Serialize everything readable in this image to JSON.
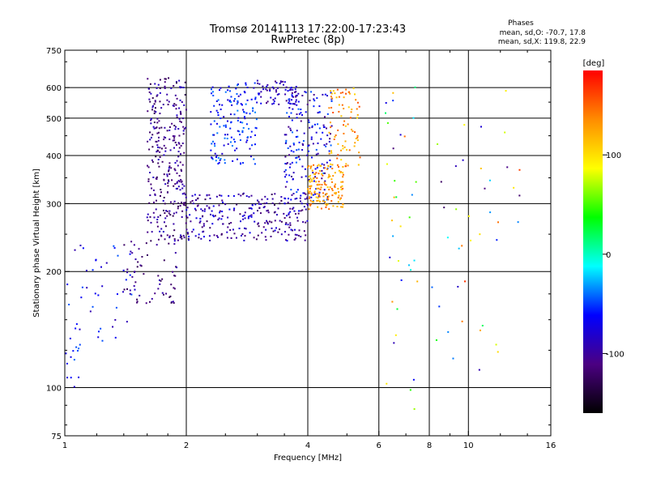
{
  "chart_data": {
    "type": "scatter",
    "title": "Tromsø 20141113 17:22:00-17:23:43",
    "subtitle": "RwPretec (8p)",
    "xlabel": "Frequency [MHz]",
    "ylabel": "Stationary phase Virtual Height [km]",
    "x_scale": "log",
    "y_scale": "log",
    "xlim": [
      1,
      16
    ],
    "ylim": [
      75,
      750
    ],
    "x_ticks": [
      1,
      2,
      4,
      6,
      8,
      10,
      16
    ],
    "y_ticks": [
      75,
      100,
      200,
      300,
      400,
      500,
      600,
      750
    ],
    "x_gridlines": [
      2,
      4,
      6,
      8,
      10
    ],
    "y_gridlines": [
      100,
      200,
      300,
      400,
      500,
      600
    ],
    "grid": true,
    "stats": {
      "heading": "Phases",
      "line_o": "mean, sd,O: -70.7, 17.8",
      "line_x": "mean, sd,X: 119.8, 22.9"
    },
    "colorbar": {
      "label": "[deg]",
      "min": -160,
      "max": 185,
      "ticks": [
        100,
        0,
        -100
      ],
      "colors": [
        "#000000",
        "#4b0082",
        "#0000ff",
        "#00ffff",
        "#00ff00",
        "#ffff00",
        "#ff8c00",
        "#ff0000"
      ]
    },
    "clusters": [
      {
        "f": [
          1.6,
          2.0
        ],
        "h": [
          240,
          640
        ],
        "phase": -105,
        "spread": 25,
        "n": 300
      },
      {
        "f": [
          2.0,
          4.0
        ],
        "h": [
          240,
          320
        ],
        "phase": -95,
        "spread": 30,
        "n": 260
      },
      {
        "f": [
          2.3,
          3.0
        ],
        "h": [
          380,
          620
        ],
        "phase": -60,
        "spread": 25,
        "n": 150
      },
      {
        "f": [
          3.0,
          3.8
        ],
        "h": [
          540,
          630
        ],
        "phase": -90,
        "spread": 25,
        "n": 70
      },
      {
        "f": [
          3.5,
          4.6
        ],
        "h": [
          300,
          600
        ],
        "phase": -75,
        "spread": 35,
        "n": 180
      },
      {
        "f": [
          4.0,
          4.9
        ],
        "h": [
          290,
          380
        ],
        "phase": 130,
        "spread": 25,
        "n": 150
      },
      {
        "f": [
          4.5,
          5.4
        ],
        "h": [
          370,
          600
        ],
        "phase": 130,
        "spread": 30,
        "n": 80
      },
      {
        "f": [
          1.4,
          1.9
        ],
        "h": [
          165,
          240
        ],
        "phase": -110,
        "spread": 20,
        "n": 60
      },
      {
        "f": [
          1.05,
          1.5
        ],
        "h": [
          130,
          240
        ],
        "phase": -70,
        "spread": 25,
        "n": 40
      },
      {
        "f": [
          1.0,
          1.1
        ],
        "h": [
          100,
          200
        ],
        "phase": -60,
        "spread": 20,
        "n": 18
      },
      {
        "f": [
          6.2,
          7.5
        ],
        "h": [
          85,
          640
        ],
        "phase": 10,
        "spread": 140,
        "n": 35
      },
      {
        "f": [
          8.0,
          13.5
        ],
        "h": [
          105,
          600
        ],
        "phase": 20,
        "spread": 150,
        "n": 40
      }
    ]
  }
}
